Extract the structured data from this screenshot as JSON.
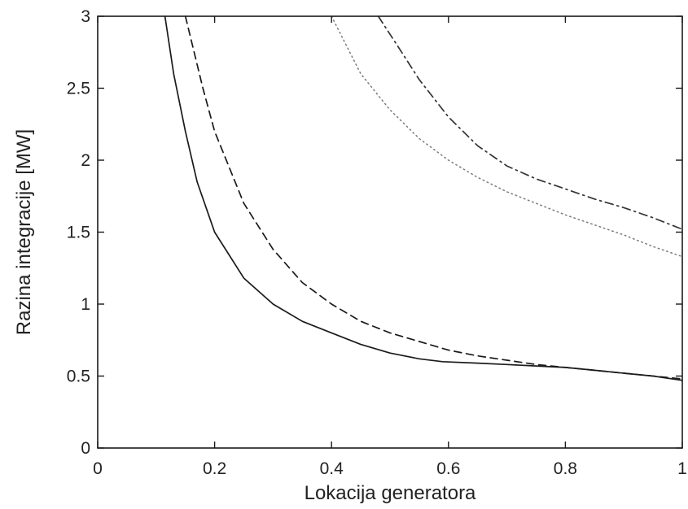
{
  "chart_data": {
    "type": "line",
    "xlabel": "Lokacija generatora",
    "ylabel": "Razina integracije [MW]",
    "xlim": [
      0,
      1
    ],
    "ylim": [
      0,
      3
    ],
    "xticks": [
      "0",
      "0.2",
      "0.4",
      "0.6",
      "0.8",
      "1"
    ],
    "yticks": [
      "0",
      "0.5",
      "1",
      "1.5",
      "2",
      "2.5",
      "3"
    ],
    "grid": false,
    "series": [
      {
        "line_style": "solid",
        "color": "#1a1a1a",
        "x": [
          0.115,
          0.13,
          0.15,
          0.17,
          0.2,
          0.25,
          0.3,
          0.35,
          0.4,
          0.45,
          0.5,
          0.55,
          0.59,
          0.65,
          0.7,
          0.75,
          0.8,
          0.85,
          0.9,
          0.95,
          1.0
        ],
        "y": [
          3.0,
          2.6,
          2.2,
          1.85,
          1.5,
          1.18,
          1.0,
          0.88,
          0.8,
          0.72,
          0.66,
          0.62,
          0.6,
          0.59,
          0.58,
          0.57,
          0.56,
          0.54,
          0.52,
          0.5,
          0.47
        ]
      },
      {
        "line_style": "dashed",
        "color": "#1a1a1a",
        "x": [
          0.15,
          0.18,
          0.2,
          0.25,
          0.3,
          0.35,
          0.4,
          0.45,
          0.5,
          0.55,
          0.6,
          0.65,
          0.7,
          0.75,
          0.8,
          0.85,
          0.9,
          0.95,
          1.0
        ],
        "y": [
          3.0,
          2.5,
          2.2,
          1.7,
          1.38,
          1.15,
          1.0,
          0.88,
          0.8,
          0.74,
          0.68,
          0.64,
          0.61,
          0.58,
          0.56,
          0.54,
          0.52,
          0.5,
          0.48
        ]
      },
      {
        "line_style": "dotted",
        "color": "#7a7a7a",
        "x": [
          0.4,
          0.45,
          0.5,
          0.55,
          0.6,
          0.65,
          0.7,
          0.75,
          0.8,
          0.85,
          0.9,
          0.95,
          1.0
        ],
        "y": [
          3.0,
          2.6,
          2.35,
          2.15,
          2.0,
          1.88,
          1.78,
          1.7,
          1.62,
          1.55,
          1.48,
          1.4,
          1.33
        ]
      },
      {
        "line_style": "dashdot",
        "color": "#333333",
        "x": [
          0.48,
          0.52,
          0.55,
          0.6,
          0.65,
          0.7,
          0.75,
          0.8,
          0.85,
          0.9,
          0.95,
          1.0
        ],
        "y": [
          3.0,
          2.75,
          2.56,
          2.3,
          2.1,
          1.96,
          1.87,
          1.8,
          1.73,
          1.67,
          1.6,
          1.52
        ]
      }
    ]
  }
}
